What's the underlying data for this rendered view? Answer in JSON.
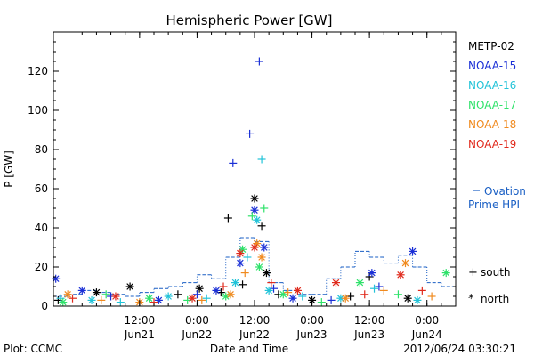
{
  "chart_data": {
    "type": "scatter",
    "title": "Hemispheric Power [GW]",
    "ylabel": "P [GW]",
    "xlabel": "Date and Time",
    "ylim": [
      0,
      140
    ],
    "xlim": [
      "2012-06-20 18:00",
      "2012-06-24 06:00"
    ],
    "y_ticks": [
      0,
      20,
      40,
      60,
      80,
      100,
      120
    ],
    "x_ticks": [
      {
        "time": "2012-06-21 12:00",
        "label1": "12:00",
        "label2": "Jun21"
      },
      {
        "time": "2012-06-22 00:00",
        "label1": "0:00",
        "label2": "Jun22"
      },
      {
        "time": "2012-06-22 12:00",
        "label1": "12:00",
        "label2": "Jun22"
      },
      {
        "time": "2012-06-23 00:00",
        "label1": "0:00",
        "label2": "Jun23"
      },
      {
        "time": "2012-06-23 12:00",
        "label1": "12:00",
        "label2": "Jun23"
      },
      {
        "time": "2012-06-24 00:00",
        "label1": "0:00",
        "label2": "Jun24"
      }
    ],
    "grid": false,
    "legend_position": "right",
    "series": [
      {
        "name": "METP-02",
        "color": "#000000",
        "points": [
          [
            "2012-06-20 19:00",
            3,
            "+"
          ],
          [
            "2012-06-21 03:00",
            7,
            "*"
          ],
          [
            "2012-06-21 10:00",
            10,
            "*"
          ],
          [
            "2012-06-21 20:00",
            6,
            "+"
          ],
          [
            "2012-06-22 00:30",
            9,
            "*"
          ],
          [
            "2012-06-22 05:00",
            7,
            "+"
          ],
          [
            "2012-06-22 06:30",
            45,
            "+"
          ],
          [
            "2012-06-22 09:30",
            11,
            "+"
          ],
          [
            "2012-06-22 12:00",
            55,
            "*"
          ],
          [
            "2012-06-22 13:30",
            41,
            "+"
          ],
          [
            "2012-06-22 14:30",
            17,
            "*"
          ],
          [
            "2012-06-22 17:00",
            6,
            "+"
          ],
          [
            "2012-06-23 00:00",
            3,
            "*"
          ],
          [
            "2012-06-23 08:00",
            5,
            "+"
          ],
          [
            "2012-06-23 12:00",
            15,
            "+"
          ],
          [
            "2012-06-23 20:00",
            4,
            "*"
          ]
        ]
      },
      {
        "name": "NOAA-15",
        "color": "#1a2fd6",
        "points": [
          [
            "2012-06-20 18:30",
            14,
            "*"
          ],
          [
            "2012-06-21 00:00",
            8,
            "*"
          ],
          [
            "2012-06-21 06:00",
            5,
            "+"
          ],
          [
            "2012-06-21 16:00",
            3,
            "*"
          ],
          [
            "2012-06-22 00:00",
            6,
            "+"
          ],
          [
            "2012-06-22 04:00",
            8,
            "*"
          ],
          [
            "2012-06-22 07:30",
            73,
            "+"
          ],
          [
            "2012-06-22 09:00",
            22,
            "*"
          ],
          [
            "2012-06-22 11:00",
            88,
            "+"
          ],
          [
            "2012-06-22 12:00",
            49,
            "*"
          ],
          [
            "2012-06-22 13:00",
            125,
            "+"
          ],
          [
            "2012-06-22 14:00",
            30,
            "*"
          ],
          [
            "2012-06-22 16:00",
            9,
            "+"
          ],
          [
            "2012-06-22 20:00",
            4,
            "*"
          ],
          [
            "2012-06-23 04:00",
            3,
            "+"
          ],
          [
            "2012-06-23 12:30",
            17,
            "*"
          ],
          [
            "2012-06-23 14:00",
            10,
            "+"
          ],
          [
            "2012-06-23 21:00",
            28,
            "*"
          ]
        ]
      },
      {
        "name": "NOAA-16",
        "color": "#22c3d8",
        "points": [
          [
            "2012-06-20 19:30",
            4,
            "+"
          ],
          [
            "2012-06-21 02:00",
            3,
            "*"
          ],
          [
            "2012-06-21 08:00",
            2,
            "+"
          ],
          [
            "2012-06-21 18:00",
            5,
            "*"
          ],
          [
            "2012-06-22 02:00",
            4,
            "+"
          ],
          [
            "2012-06-22 08:00",
            12,
            "*"
          ],
          [
            "2012-06-22 10:30",
            25,
            "+"
          ],
          [
            "2012-06-22 12:30",
            44,
            "*"
          ],
          [
            "2012-06-22 13:30",
            75,
            "+"
          ],
          [
            "2012-06-22 15:00",
            8,
            "*"
          ],
          [
            "2012-06-22 22:00",
            5,
            "+"
          ],
          [
            "2012-06-23 06:00",
            4,
            "*"
          ],
          [
            "2012-06-23 13:00",
            9,
            "+"
          ],
          [
            "2012-06-23 22:00",
            3,
            "*"
          ]
        ]
      },
      {
        "name": "NOAA-17",
        "color": "#2ee26a",
        "points": [
          [
            "2012-06-20 20:00",
            2,
            "*"
          ],
          [
            "2012-06-21 05:00",
            6,
            "+"
          ],
          [
            "2012-06-21 14:00",
            4,
            "*"
          ],
          [
            "2012-06-21 22:00",
            3,
            "+"
          ],
          [
            "2012-06-22 06:00",
            5,
            "*"
          ],
          [
            "2012-06-22 09:30",
            29,
            "*"
          ],
          [
            "2012-06-22 11:30",
            46,
            "+"
          ],
          [
            "2012-06-22 13:00",
            20,
            "*"
          ],
          [
            "2012-06-22 14:00",
            50,
            "+"
          ],
          [
            "2012-06-22 18:00",
            6,
            "*"
          ],
          [
            "2012-06-23 02:00",
            2,
            "+"
          ],
          [
            "2012-06-23 10:00",
            12,
            "*"
          ],
          [
            "2012-06-23 18:00",
            6,
            "+"
          ],
          [
            "2012-06-24 04:00",
            17,
            "*"
          ]
        ]
      },
      {
        "name": "NOAA-18",
        "color": "#f08a1f",
        "points": [
          [
            "2012-06-20 21:00",
            6,
            "*"
          ],
          [
            "2012-06-21 04:00",
            3,
            "+"
          ],
          [
            "2012-06-21 12:00",
            2,
            "*"
          ],
          [
            "2012-06-22 01:00",
            3,
            "+"
          ],
          [
            "2012-06-22 07:00",
            6,
            "*"
          ],
          [
            "2012-06-22 10:00",
            17,
            "+"
          ],
          [
            "2012-06-22 12:30",
            32,
            "*"
          ],
          [
            "2012-06-22 13:30",
            25,
            "*"
          ],
          [
            "2012-06-22 19:00",
            7,
            "+"
          ],
          [
            "2012-06-23 07:00",
            4,
            "*"
          ],
          [
            "2012-06-23 15:00",
            8,
            "+"
          ],
          [
            "2012-06-23 19:30",
            22,
            "*"
          ],
          [
            "2012-06-24 01:00",
            5,
            "+"
          ]
        ]
      },
      {
        "name": "NOAA-19",
        "color": "#e02a1c",
        "points": [
          [
            "2012-06-20 22:00",
            4,
            "+"
          ],
          [
            "2012-06-21 07:00",
            5,
            "*"
          ],
          [
            "2012-06-21 15:00",
            2,
            "+"
          ],
          [
            "2012-06-21 23:00",
            4,
            "*"
          ],
          [
            "2012-06-22 05:30",
            10,
            "+"
          ],
          [
            "2012-06-22 09:00",
            27,
            "*"
          ],
          [
            "2012-06-22 12:00",
            30,
            "*"
          ],
          [
            "2012-06-22 15:30",
            12,
            "+"
          ],
          [
            "2012-06-22 21:00",
            8,
            "*"
          ],
          [
            "2012-06-23 05:00",
            12,
            "*"
          ],
          [
            "2012-06-23 11:00",
            6,
            "+"
          ],
          [
            "2012-06-23 18:30",
            16,
            "*"
          ],
          [
            "2012-06-23 23:00",
            8,
            "+"
          ]
        ]
      }
    ],
    "ovation": {
      "name": "Ovation Prime HPI",
      "label_line1": "Ovation",
      "label_line2": "Prime HPI",
      "color": "#1a5fc4",
      "times": [
        "2012-06-20 18:00",
        "2012-06-20 21:00",
        "2012-06-21 00:00",
        "2012-06-21 03:00",
        "2012-06-21 06:00",
        "2012-06-21 09:00",
        "2012-06-21 12:00",
        "2012-06-21 15:00",
        "2012-06-21 18:00",
        "2012-06-21 21:00",
        "2012-06-22 00:00",
        "2012-06-22 03:00",
        "2012-06-22 06:00",
        "2012-06-22 09:00",
        "2012-06-22 12:00",
        "2012-06-22 15:00",
        "2012-06-22 18:00",
        "2012-06-22 21:00",
        "2012-06-23 00:00",
        "2012-06-23 03:00",
        "2012-06-23 06:00",
        "2012-06-23 09:00",
        "2012-06-23 12:00",
        "2012-06-23 15:00",
        "2012-06-23 18:00",
        "2012-06-23 21:00",
        "2012-06-24 00:00",
        "2012-06-24 03:00"
      ],
      "values": [
        5,
        6,
        8,
        7,
        6,
        5,
        7,
        9,
        10,
        12,
        16,
        14,
        25,
        35,
        33,
        12,
        8,
        6,
        6,
        14,
        20,
        28,
        25,
        22,
        26,
        20,
        12,
        10
      ]
    },
    "symbol_legend": [
      {
        "symbol": "+",
        "label": "south"
      },
      {
        "symbol": "*",
        "label": "north"
      }
    ]
  },
  "footer": {
    "left": "Plot: CCMC",
    "center": "Date and Time",
    "right": "2012/06/24 03:30:21"
  }
}
